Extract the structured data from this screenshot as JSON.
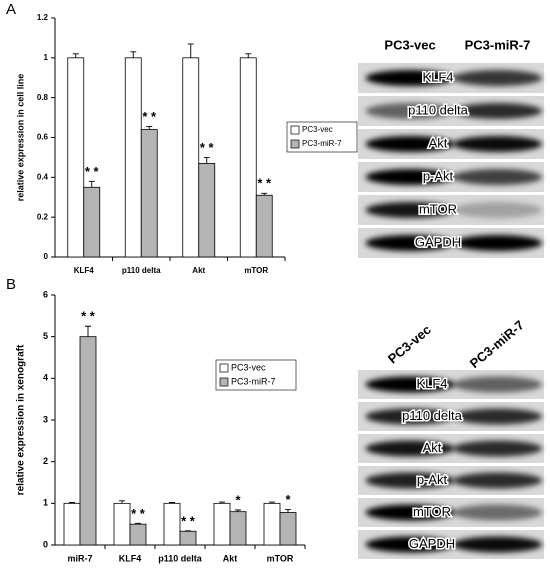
{
  "panel_labels": [
    "A",
    "B"
  ],
  "chart_data": [
    {
      "type": "bar",
      "ylabel": "relative expression in cell line",
      "categories": [
        "KLF4",
        "p110 delta",
        "Akt",
        "mTOR"
      ],
      "series": [
        {
          "name": "PC3-vec",
          "color": "#ffffff",
          "values": [
            1,
            1,
            1,
            1
          ],
          "errors": [
            0.02,
            0.03,
            0.07,
            0.02
          ]
        },
        {
          "name": "PC3-miR-7",
          "color": "#b4b4b4",
          "values": [
            0.35,
            0.64,
            0.47,
            0.31
          ],
          "errors": [
            0.03,
            0.015,
            0.03,
            0.01
          ]
        }
      ],
      "annotations": [
        "* *",
        "* *",
        "* *",
        "* *"
      ],
      "ylim": [
        0,
        1.2
      ],
      "yticks": [
        0,
        0.2,
        0.4,
        0.6,
        0.8,
        1,
        1.2
      ]
    },
    {
      "type": "bar",
      "ylabel": "relative expression in xenograft",
      "categories": [
        "miR-7",
        "KLF4",
        "p110 delta",
        "Akt",
        "mTOR"
      ],
      "series": [
        {
          "name": "PC3-vec",
          "color": "#ffffff",
          "values": [
            1,
            1,
            1,
            1,
            1
          ],
          "errors": [
            0.02,
            0.06,
            0.02,
            0.03,
            0.03
          ]
        },
        {
          "name": "PC3-miR-7",
          "color": "#b4b4b4",
          "values": [
            5.0,
            0.5,
            0.33,
            0.8,
            0.78
          ],
          "errors": [
            0.25,
            0.02,
            0.01,
            0.04,
            0.07
          ]
        }
      ],
      "annotations": [
        "* *",
        "* *",
        "* *",
        "*",
        "*"
      ],
      "ylim": [
        0,
        6
      ],
      "yticks": [
        0,
        1,
        2,
        3,
        4,
        5,
        6
      ]
    }
  ],
  "blots": [
    {
      "columns": [
        "PC3-vec",
        "PC3-miR-7"
      ],
      "rows": [
        "KLF4",
        "p110 delta",
        "Akt",
        "p-Akt",
        "mTOR",
        "GAPDH"
      ]
    },
    {
      "columns": [
        "PC3-vec",
        "PC3-miR-7"
      ],
      "rows": [
        "KLF4",
        "p110 delta",
        "Akt",
        "p-Akt",
        "mTOR",
        "GAPDH"
      ]
    }
  ]
}
